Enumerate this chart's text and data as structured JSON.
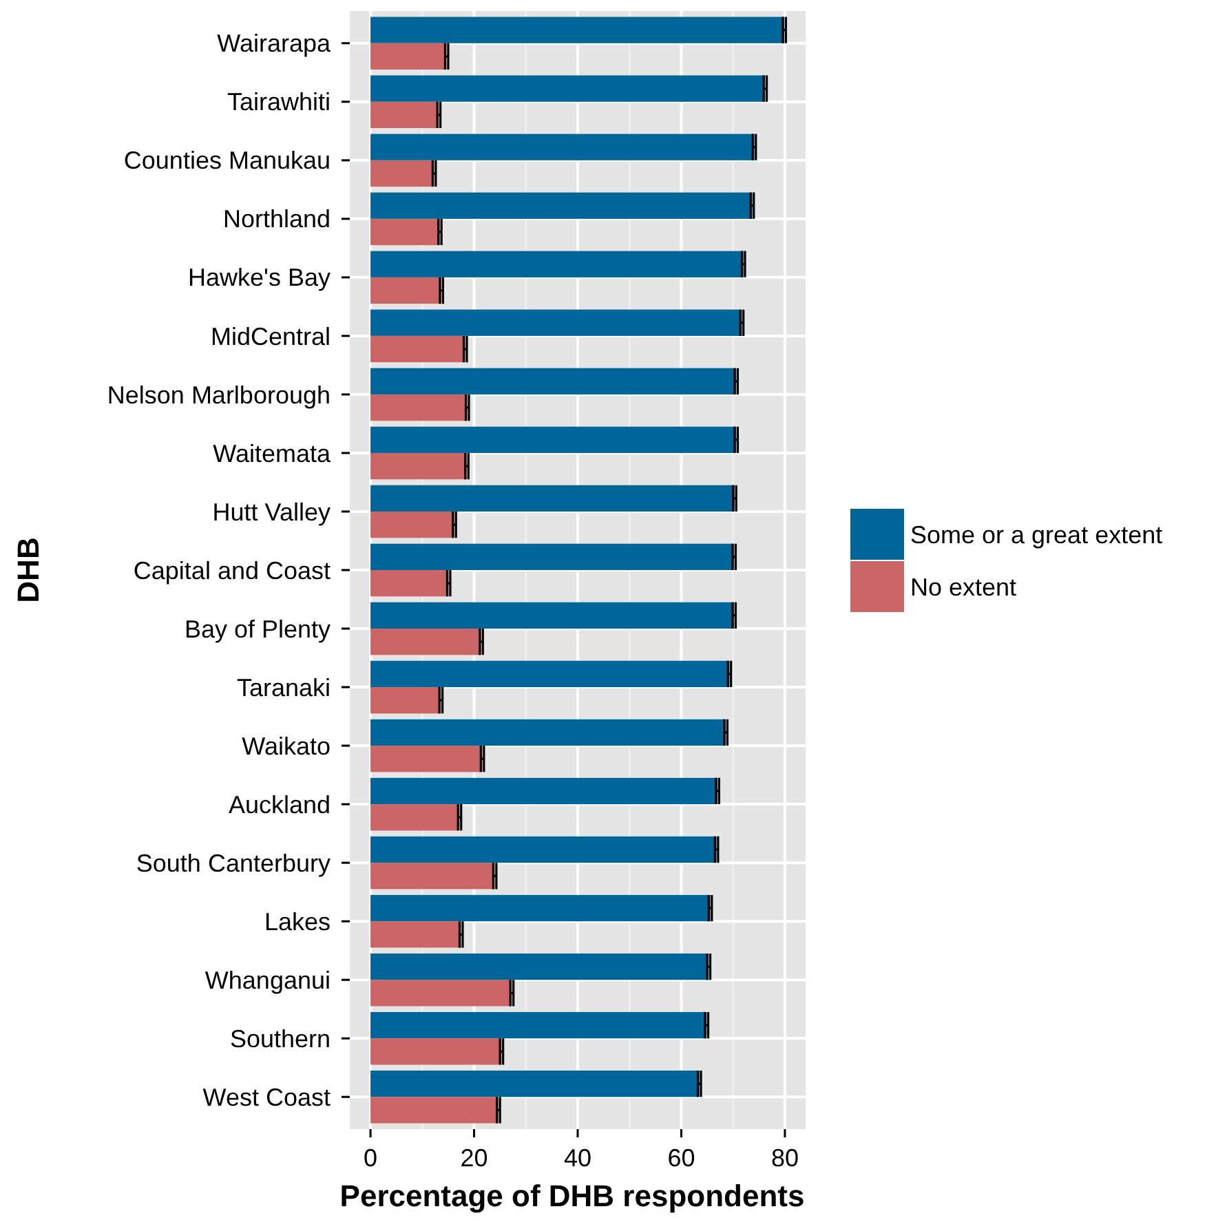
{
  "chart_data": {
    "type": "bar",
    "orientation": "horizontal",
    "xlabel": "Percentage of DHB respondents",
    "ylabel": "DHB",
    "categories": [
      "Wairarapa",
      "Tairawhiti",
      "Counties Manukau",
      "Northland",
      "Hawke's Bay",
      "MidCentral",
      "Nelson Marlborough",
      "Waitemata",
      "Hutt Valley",
      "Capital and Coast",
      "Bay of Plenty",
      "Taranaki",
      "Waikato",
      "Auckland",
      "South Canterbury",
      "Lakes",
      "Whanganui",
      "Southern",
      "West Coast"
    ],
    "series": [
      {
        "name": "Some or a great extent",
        "color": "#006699",
        "values": [
          79.9,
          76.2,
          74.1,
          73.7,
          72.0,
          71.7,
          70.6,
          70.6,
          70.3,
          70.2,
          70.2,
          69.3,
          68.6,
          67.0,
          66.8,
          65.6,
          65.3,
          64.9,
          63.5
        ],
        "errors": [
          0.3,
          0.3,
          0.3,
          0.3,
          0.3,
          0.3,
          0.3,
          0.3,
          0.3,
          0.3,
          0.3,
          0.3,
          0.3,
          0.3,
          0.3,
          0.3,
          0.3,
          0.3,
          0.3
        ]
      },
      {
        "name": "No extent",
        "color": "#cc6666",
        "values": [
          14.7,
          13.2,
          12.3,
          13.4,
          13.7,
          18.3,
          18.7,
          18.6,
          16.2,
          15.1,
          21.4,
          13.6,
          21.6,
          17.2,
          24.0,
          17.5,
          27.3,
          25.3,
          24.7
        ],
        "errors": [
          0.3,
          0.3,
          0.3,
          0.3,
          0.3,
          0.3,
          0.3,
          0.3,
          0.3,
          0.3,
          0.3,
          0.3,
          0.3,
          0.3,
          0.3,
          0.3,
          0.3,
          0.3,
          0.3
        ]
      }
    ],
    "xlim": [
      -4,
      84
    ],
    "xticks": [
      0,
      20,
      40,
      60,
      80
    ],
    "grid": true,
    "legend": "right"
  }
}
